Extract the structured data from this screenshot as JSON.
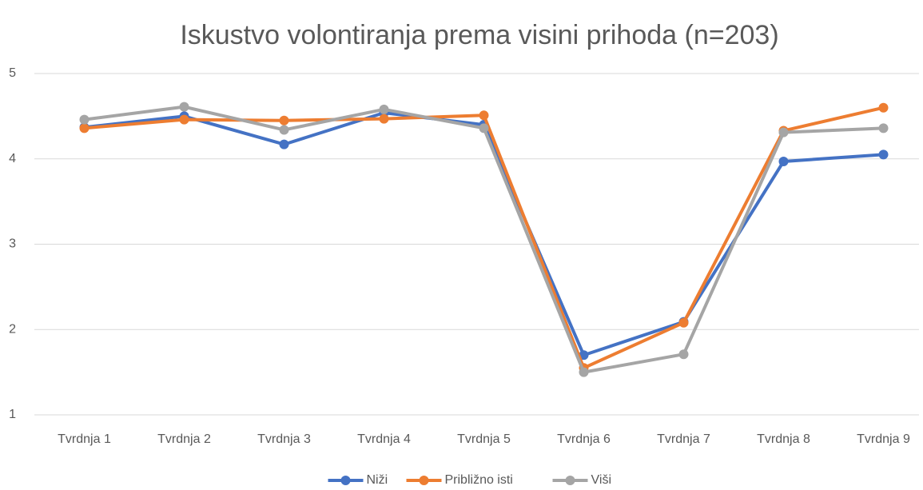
{
  "chart_data": {
    "type": "line",
    "title": "Iskustvo volontiranja prema visini prihoda (n=203)",
    "categories": [
      "Tvrdnja 1",
      "Tvrdnja 2",
      "Tvrdnja 3",
      "Tvrdnja 4",
      "Tvrdnja 5",
      "Tvrdnja 6",
      "Tvrdnja 7",
      "Tvrdnja 8",
      "Tvrdnja 9"
    ],
    "series": [
      {
        "name": "Niži",
        "color": "#4472c4",
        "values": [
          4.37,
          4.5,
          4.17,
          4.54,
          4.4,
          1.7,
          2.09,
          3.97,
          4.05
        ]
      },
      {
        "name": "Približno isti",
        "color": "#ed7d31",
        "values": [
          4.36,
          4.46,
          4.45,
          4.47,
          4.51,
          1.55,
          2.08,
          4.33,
          4.6
        ]
      },
      {
        "name": "Viši",
        "color": "#a5a5a5",
        "values": [
          4.46,
          4.61,
          4.34,
          4.58,
          4.36,
          1.5,
          1.71,
          4.31,
          4.36
        ]
      }
    ],
    "ylim": [
      1,
      5
    ],
    "yticks": [
      1,
      2,
      3,
      4,
      5
    ],
    "grid": true,
    "legend": "bottom"
  }
}
